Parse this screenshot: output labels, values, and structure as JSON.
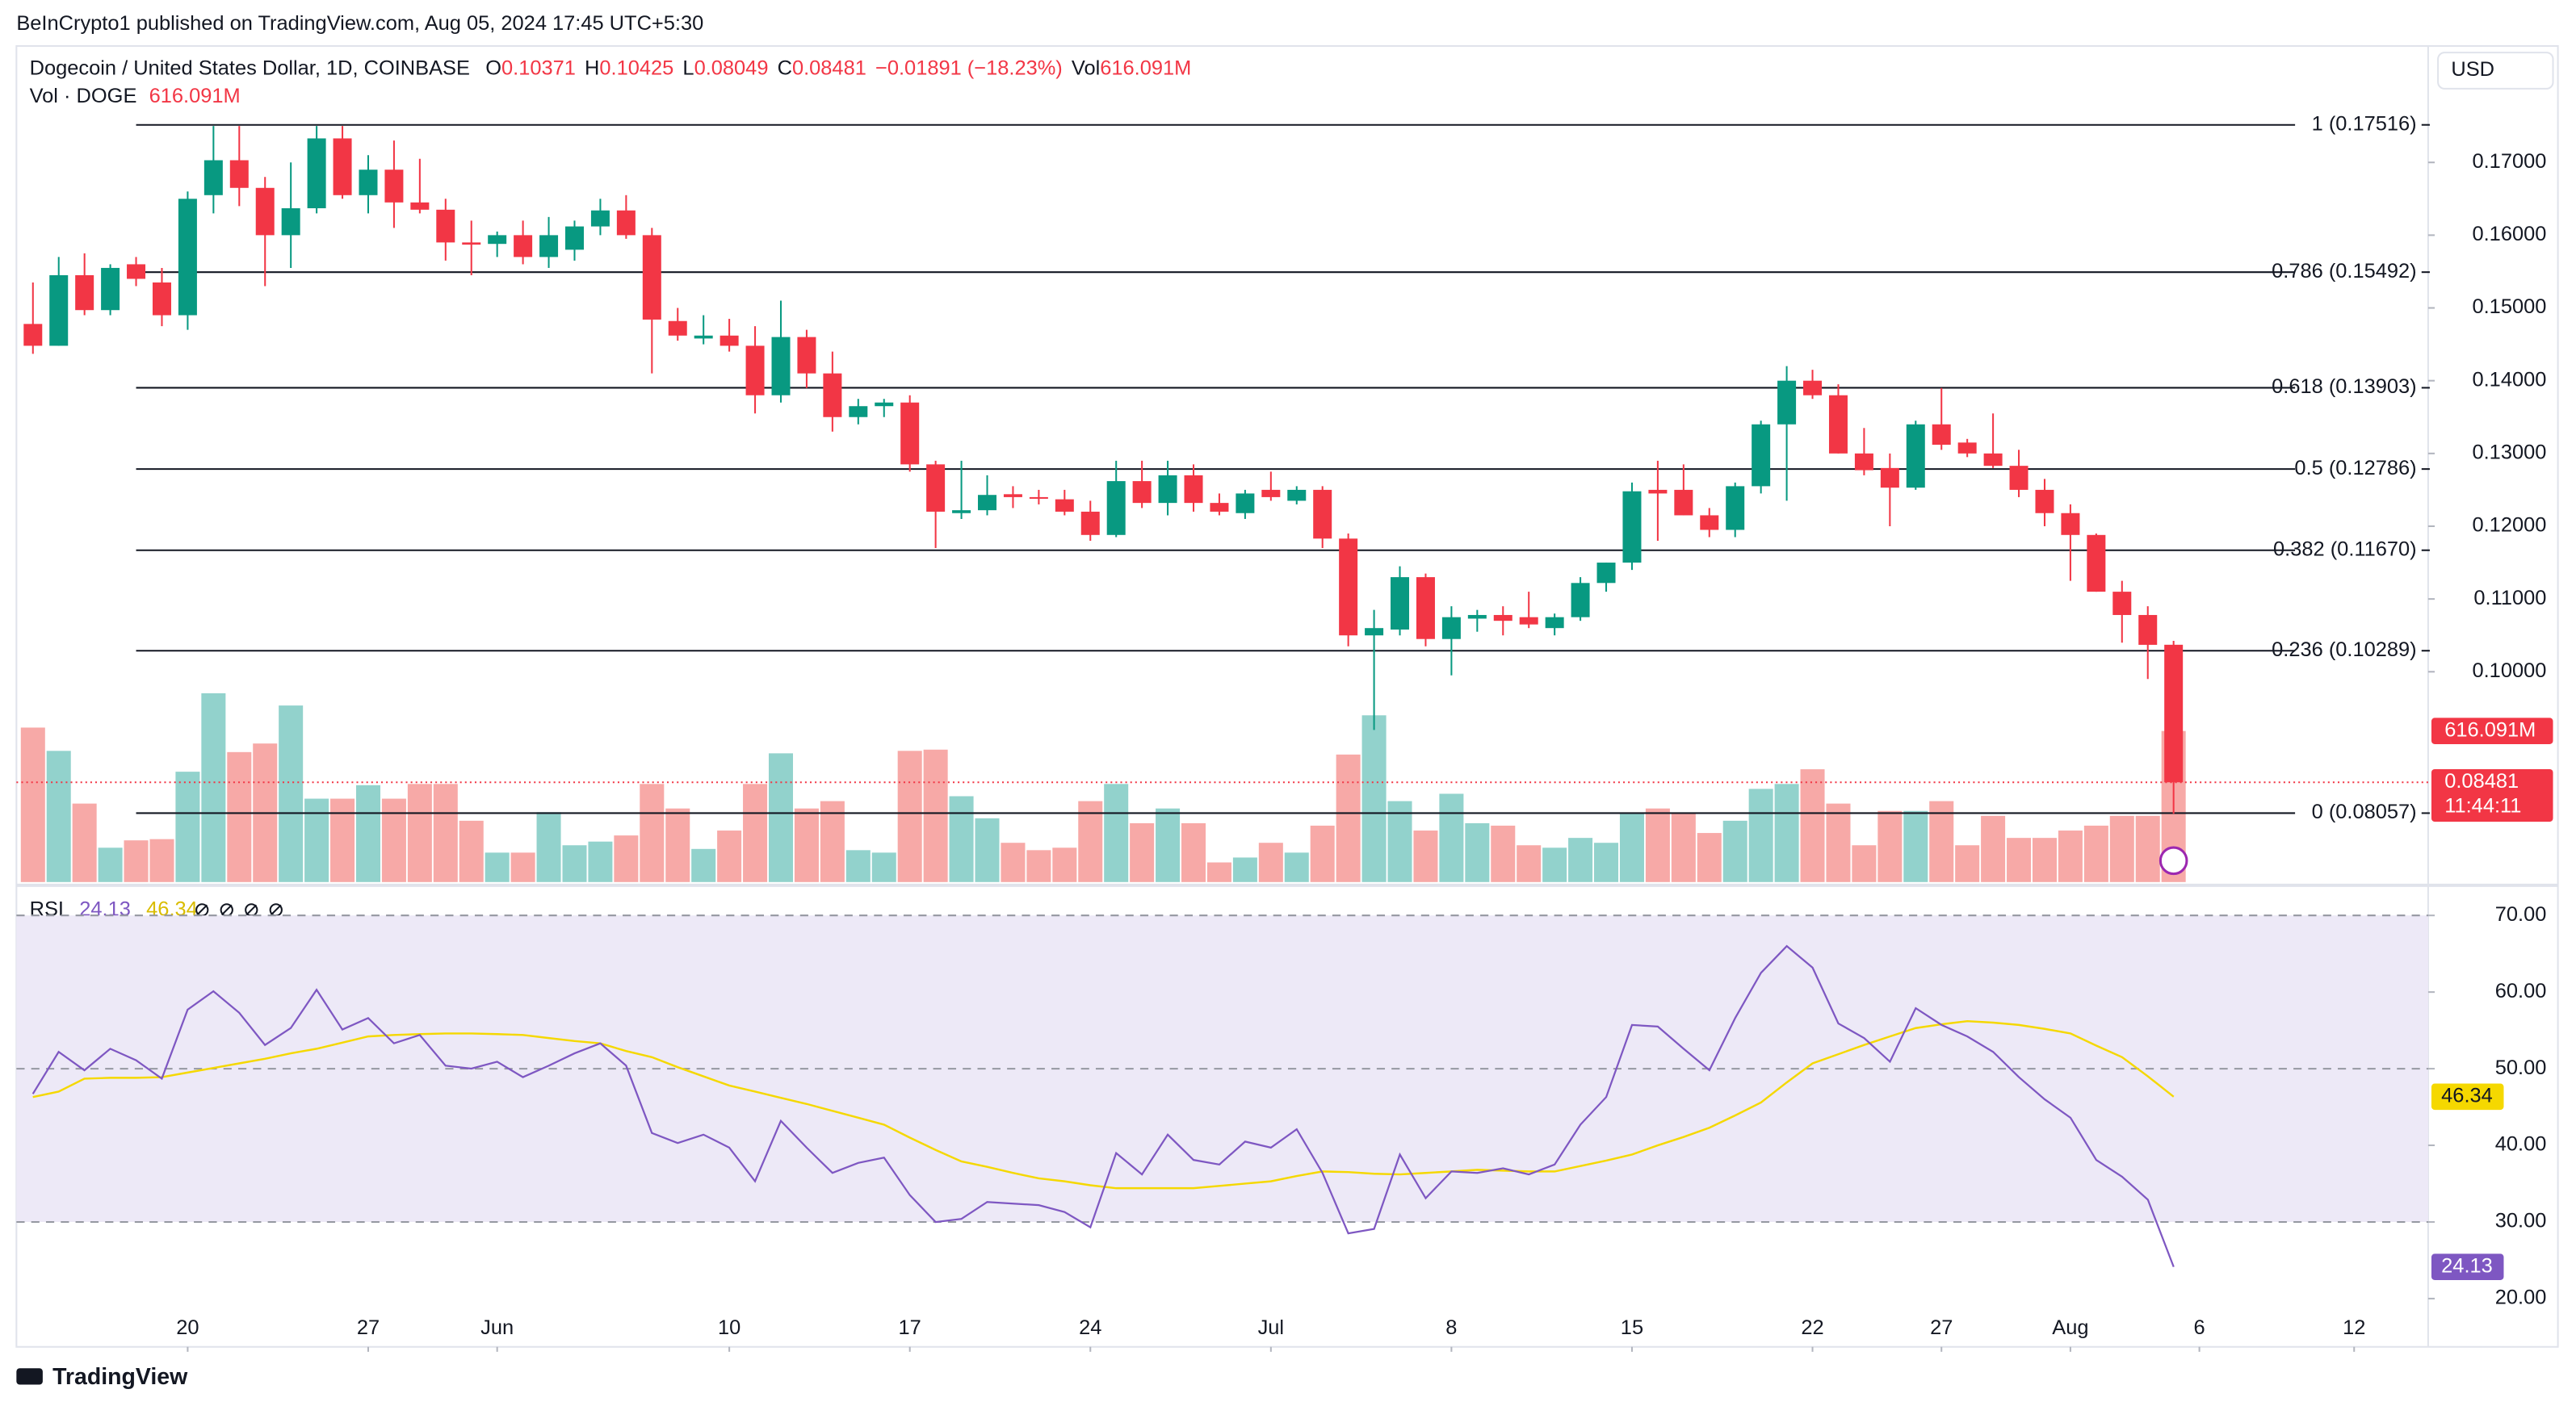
{
  "header": {
    "published": "BeInCrypto1 published on TradingView.com, Aug 05, 2024 17:45 UTC+5:30",
    "currency_button": "USD",
    "footer_logo": "TradingView"
  },
  "chart_data": {
    "type": "candlestick",
    "title": "Dogecoin / United States Dollar, 1D, COINBASE",
    "ohlc_letters": [
      "O",
      "H",
      "L",
      "C"
    ],
    "change_label": "−0.01891 (−18.23%)",
    "vol_letter": "Vol",
    "up_color": "#089981",
    "down_color": "#f23645",
    "up_volume_color": "#92d2cc",
    "down_volume_color": "#f7a9a7",
    "open": [
      0.1478,
      0.1448,
      0.1545,
      0.1497,
      0.156,
      0.1535,
      0.149,
      0.1655,
      0.1703,
      0.1665,
      0.16,
      0.1637,
      0.1733,
      0.1655,
      0.169,
      0.1645,
      0.1635,
      0.159,
      0.1588,
      0.16,
      0.157,
      0.158,
      0.1612,
      0.1634,
      0.16,
      0.1482,
      0.1458,
      0.1462,
      0.1448,
      0.138,
      0.146,
      0.141,
      0.135,
      0.1365,
      0.137,
      0.1285,
      0.1218,
      0.1222,
      0.1244,
      0.124,
      0.1237,
      0.122,
      0.1188,
      0.1262,
      0.1232,
      0.127,
      0.1232,
      0.1218,
      0.125,
      0.1235,
      0.125,
      0.1183,
      0.105,
      0.1058,
      0.113,
      0.1045,
      0.1073,
      0.1078,
      0.1075,
      0.106,
      0.1075,
      0.1122,
      0.115,
      0.125,
      0.125,
      0.1215,
      0.1195,
      0.1255,
      0.134,
      0.14,
      0.138,
      0.13,
      0.128,
      0.1253,
      0.134,
      0.1315,
      0.13,
      0.1283,
      0.125,
      0.1218,
      0.1188,
      0.111,
      0.1078,
      0.10371
    ],
    "high": [
      0.1535,
      0.157,
      0.1575,
      0.156,
      0.157,
      0.1555,
      0.166,
      0.175,
      0.175,
      0.168,
      0.17,
      0.175,
      0.175,
      0.171,
      0.173,
      0.1705,
      0.165,
      0.162,
      0.1605,
      0.162,
      0.1625,
      0.162,
      0.165,
      0.1655,
      0.161,
      0.15,
      0.149,
      0.1485,
      0.1475,
      0.151,
      0.147,
      0.144,
      0.1375,
      0.1375,
      0.138,
      0.129,
      0.129,
      0.127,
      0.1255,
      0.125,
      0.125,
      0.1235,
      0.129,
      0.129,
      0.129,
      0.1285,
      0.1245,
      0.125,
      0.1275,
      0.1255,
      0.1255,
      0.119,
      0.1085,
      0.1145,
      0.1135,
      0.109,
      0.1085,
      0.109,
      0.111,
      0.108,
      0.113,
      0.115,
      0.126,
      0.129,
      0.1285,
      0.1225,
      0.126,
      0.1345,
      0.142,
      0.1415,
      0.1395,
      0.1335,
      0.13,
      0.1345,
      0.139,
      0.132,
      0.1355,
      0.1305,
      0.1265,
      0.123,
      0.119,
      0.1125,
      0.109,
      0.10425
    ],
    "low": [
      0.1437,
      0.1448,
      0.149,
      0.149,
      0.153,
      0.1475,
      0.147,
      0.163,
      0.164,
      0.153,
      0.1555,
      0.163,
      0.165,
      0.163,
      0.161,
      0.163,
      0.1565,
      0.1545,
      0.157,
      0.156,
      0.1555,
      0.1565,
      0.16,
      0.1595,
      0.141,
      0.1455,
      0.145,
      0.144,
      0.1355,
      0.137,
      0.139,
      0.133,
      0.134,
      0.135,
      0.1275,
      0.117,
      0.121,
      0.1215,
      0.1225,
      0.123,
      0.1215,
      0.118,
      0.1185,
      0.1225,
      0.1215,
      0.122,
      0.1215,
      0.121,
      0.1235,
      0.123,
      0.117,
      0.1035,
      0.092,
      0.105,
      0.1035,
      0.0995,
      0.1055,
      0.105,
      0.106,
      0.105,
      0.107,
      0.111,
      0.114,
      0.118,
      0.1215,
      0.1185,
      0.1185,
      0.1245,
      0.1235,
      0.1375,
      0.13,
      0.127,
      0.12,
      0.125,
      0.1305,
      0.1295,
      0.128,
      0.124,
      0.12,
      0.1125,
      0.111,
      0.104,
      0.099,
      0.08049
    ],
    "close": [
      0.1448,
      0.1545,
      0.1497,
      0.1555,
      0.154,
      0.149,
      0.165,
      0.1703,
      0.1665,
      0.16,
      0.1637,
      0.1733,
      0.1655,
      0.169,
      0.1645,
      0.1635,
      0.159,
      0.1587,
      0.16,
      0.157,
      0.16,
      0.1612,
      0.1634,
      0.16,
      0.1484,
      0.1462,
      0.1462,
      0.1448,
      0.138,
      0.146,
      0.141,
      0.135,
      0.1365,
      0.137,
      0.1285,
      0.122,
      0.1222,
      0.1243,
      0.124,
      0.1238,
      0.122,
      0.1188,
      0.1262,
      0.1232,
      0.127,
      0.1232,
      0.122,
      0.1245,
      0.124,
      0.125,
      0.1183,
      0.105,
      0.106,
      0.113,
      0.1045,
      0.1075,
      0.1078,
      0.107,
      0.1065,
      0.1075,
      0.1122,
      0.115,
      0.1248,
      0.1245,
      0.1215,
      0.1195,
      0.1255,
      0.134,
      0.14,
      0.138,
      0.13,
      0.1277,
      0.1253,
      0.134,
      0.1312,
      0.13,
      0.1283,
      0.125,
      0.1218,
      0.1188,
      0.111,
      0.1078,
      0.1037,
      0.08481
    ],
    "countdown": "11:44:11",
    "volume": {
      "name": "Vol · DOGE",
      "ylim": [
        0,
        3410
      ],
      "last_label": "616.091M",
      "values": [
        630,
        535,
        320,
        140,
        170,
        175,
        450,
        770,
        530,
        565,
        720,
        340,
        340,
        395,
        340,
        400,
        400,
        250,
        120,
        120,
        285,
        150,
        165,
        190,
        400,
        300,
        135,
        210,
        400,
        525,
        300,
        330,
        130,
        120,
        535,
        540,
        350,
        260,
        160,
        130,
        140,
        330,
        400,
        240,
        300,
        240,
        80,
        100,
        160,
        120,
        230,
        520,
        680,
        330,
        210,
        360,
        240,
        230,
        150,
        140,
        180,
        160,
        280,
        300,
        280,
        200,
        250,
        380,
        400,
        460,
        320,
        150,
        290,
        290,
        330,
        150,
        270,
        180,
        180,
        210,
        230,
        270,
        270,
        616.091
      ]
    },
    "xlim": [
      -0.64,
      92.87
    ],
    "xticks": [
      {
        "value": 6,
        "label": "20"
      },
      {
        "value": 13,
        "label": "27"
      },
      {
        "value": 18,
        "label": "Jun"
      },
      {
        "value": 27,
        "label": "10"
      },
      {
        "value": 34,
        "label": "17"
      },
      {
        "value": 41,
        "label": "24"
      },
      {
        "value": 48,
        "label": "Jul"
      },
      {
        "value": 55,
        "label": "8"
      },
      {
        "value": 62,
        "label": "15"
      },
      {
        "value": 69,
        "label": "22"
      },
      {
        "value": 74,
        "label": "27"
      },
      {
        "value": 79,
        "label": "Aug"
      },
      {
        "value": 84,
        "label": "6"
      },
      {
        "value": 90,
        "label": "12"
      }
    ],
    "ylim": [
      0.0711,
      0.186
    ],
    "yticks": [
      {
        "value": 0.17,
        "label": "0.17000"
      },
      {
        "value": 0.16,
        "label": "0.16000"
      },
      {
        "value": 0.15,
        "label": "0.15000"
      },
      {
        "value": 0.14,
        "label": "0.14000"
      },
      {
        "value": 0.13,
        "label": "0.13000"
      },
      {
        "value": 0.12,
        "label": "0.12000"
      },
      {
        "value": 0.11,
        "label": "0.11000"
      },
      {
        "value": 0.1,
        "label": "0.10000"
      }
    ],
    "fib_levels": [
      {
        "label": "1 (0.17516)",
        "value": 0.17516
      },
      {
        "label": "0.786 (0.15492)",
        "value": 0.15492
      },
      {
        "label": "0.618 (0.13903)",
        "value": 0.13903
      },
      {
        "label": "0.5 (0.12786)",
        "value": 0.12786
      },
      {
        "label": "0.382 (0.11670)",
        "value": 0.1167
      },
      {
        "label": "0.236 (0.10289)",
        "value": 0.10289
      },
      {
        "label": "0 (0.08057)",
        "value": 0.08057
      }
    ],
    "rsi": {
      "name": "RSI",
      "ylim": [
        13.7,
        73.5
      ],
      "yticks": [
        {
          "value": 70,
          "label": "70.00"
        },
        {
          "value": 60,
          "label": "60.00"
        },
        {
          "value": 50,
          "label": "50.00"
        },
        {
          "value": 40,
          "label": "40.00"
        },
        {
          "value": 30,
          "label": "30.00"
        },
        {
          "value": 20,
          "label": "20.00"
        }
      ],
      "band": [
        30,
        70
      ],
      "band_lines": [
        70,
        50,
        30
      ],
      "band_color": "#ede9f7",
      "series": [
        {
          "color": "#7e57c2",
          "values": [
            46.7,
            52.2,
            49.8,
            52.6,
            51.1,
            48.7,
            57.7,
            60.1,
            57.3,
            53.1,
            55.3,
            60.3,
            55.1,
            56.6,
            53.3,
            54.4,
            50.4,
            50.0,
            50.9,
            48.9,
            50.4,
            52.0,
            53.3,
            50.4,
            41.6,
            40.3,
            41.4,
            39.7,
            35.3,
            43.2,
            39.7,
            36.4,
            37.7,
            38.4,
            33.5,
            30.0,
            30.4,
            32.6,
            32.4,
            32.2,
            31.3,
            29.3,
            39.0,
            36.2,
            41.4,
            38.1,
            37.5,
            40.5,
            39.7,
            42.1,
            36.4,
            28.5,
            29.1,
            38.8,
            33.1,
            36.6,
            36.4,
            37.0,
            36.2,
            37.5,
            42.7,
            46.3,
            55.7,
            55.5,
            52.6,
            49.8,
            56.6,
            62.5,
            66.0,
            63.2,
            55.9,
            54.0,
            50.9,
            57.9,
            55.7,
            54.2,
            52.2,
            48.9,
            46.0,
            43.6,
            38.1,
            35.9,
            32.9,
            24.13
          ]
        },
        {
          "color": "#f5d800",
          "values": [
            46.3,
            47.0,
            48.7,
            48.8,
            48.8,
            48.9,
            49.5,
            50.1,
            50.7,
            51.3,
            52.0,
            52.6,
            53.4,
            54.2,
            54.4,
            54.5,
            54.6,
            54.6,
            54.5,
            54.4,
            54.0,
            53.6,
            53.3,
            52.3,
            51.5,
            50.2,
            49.0,
            47.8,
            47.0,
            46.2,
            45.4,
            44.5,
            43.6,
            42.7,
            41.0,
            39.4,
            37.9,
            37.2,
            36.4,
            35.7,
            35.3,
            34.8,
            34.4,
            34.4,
            34.4,
            34.4,
            34.7,
            35.0,
            35.3,
            36.0,
            36.6,
            36.5,
            36.3,
            36.2,
            36.4,
            36.6,
            36.8,
            36.7,
            36.6,
            36.6,
            37.3,
            38.0,
            38.8,
            40.0,
            41.1,
            42.3,
            43.9,
            45.6,
            48.2,
            50.7,
            51.9,
            53.1,
            54.2,
            55.3,
            55.8,
            56.2,
            56.0,
            55.7,
            55.2,
            54.6,
            53.0,
            51.5,
            49.0,
            46.34
          ]
        }
      ]
    }
  }
}
